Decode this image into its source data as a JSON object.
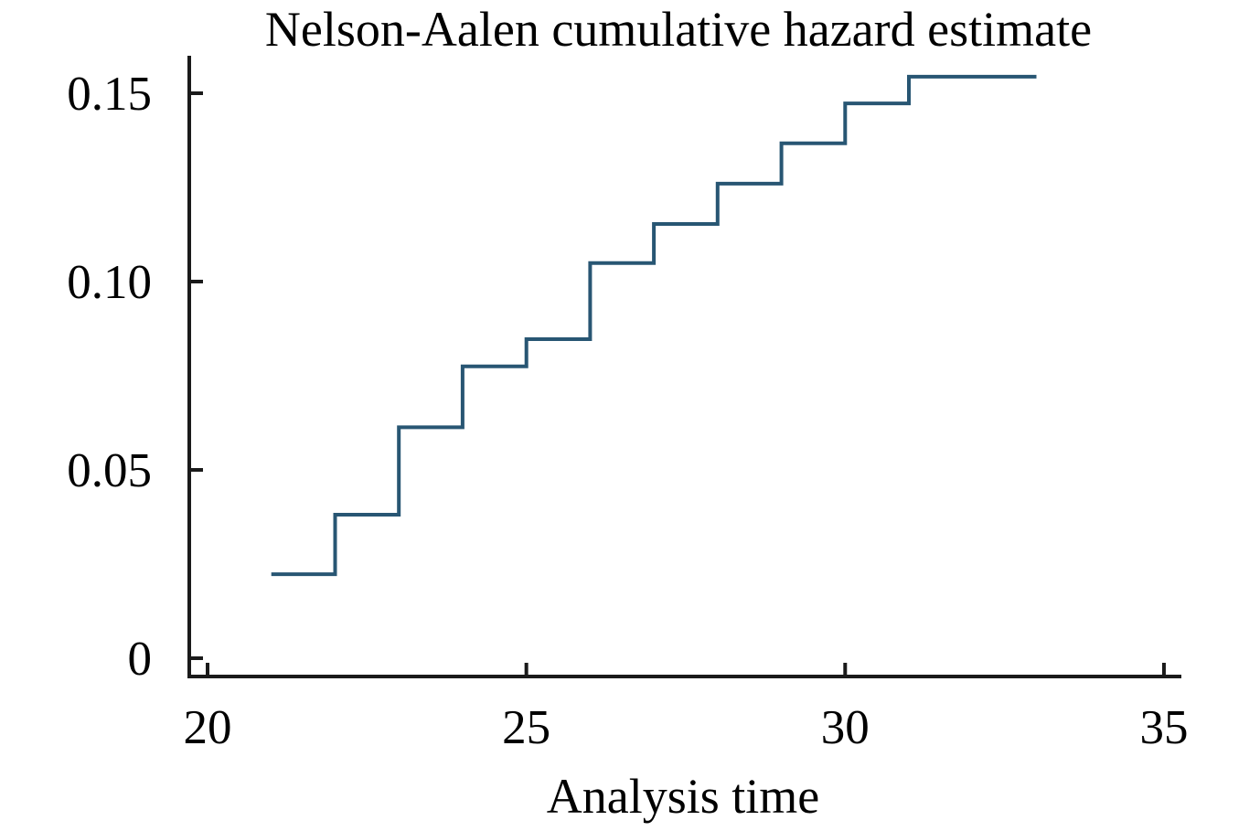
{
  "page": {
    "background": "#ffffff"
  },
  "chart_data": {
    "type": "line",
    "subtype": "step",
    "title": "Nelson-Aalen cumulative hazard estimate",
    "xlabel": "Analysis time",
    "ylabel": "",
    "xlim": [
      19.7,
      35.3
    ],
    "ylim": [
      0,
      0.165
    ],
    "grid": false,
    "legend": "none",
    "colors": {
      "axis": "#1a1a1a",
      "text": "#000000",
      "line": "#285673"
    },
    "x_ticks": [
      {
        "value": 20,
        "label": "20"
      },
      {
        "value": 25,
        "label": "25"
      },
      {
        "value": 30,
        "label": "30"
      },
      {
        "value": 35,
        "label": "35"
      }
    ],
    "y_ticks": [
      {
        "value": 0,
        "label": "0"
      },
      {
        "value": 0.05,
        "label": "0.05"
      },
      {
        "value": 0.1,
        "label": "0.10"
      },
      {
        "value": 0.15,
        "label": "0.15"
      }
    ],
    "series": [
      {
        "name": "Nelson-Aalen cumulative hazard",
        "color": "#285673",
        "steps": [
          {
            "time": 21,
            "hazard": 0.0223
          },
          {
            "time": 22,
            "hazard": 0.0381
          },
          {
            "time": 23,
            "hazard": 0.0613
          },
          {
            "time": 24,
            "hazard": 0.0775
          },
          {
            "time": 25,
            "hazard": 0.0847
          },
          {
            "time": 26,
            "hazard": 0.1049
          },
          {
            "time": 27,
            "hazard": 0.1153
          },
          {
            "time": 28,
            "hazard": 0.126
          },
          {
            "time": 29,
            "hazard": 0.1367
          },
          {
            "time": 30,
            "hazard": 0.1473
          },
          {
            "time": 31,
            "hazard": 0.1544
          }
        ],
        "end_time": 33
      }
    ]
  }
}
